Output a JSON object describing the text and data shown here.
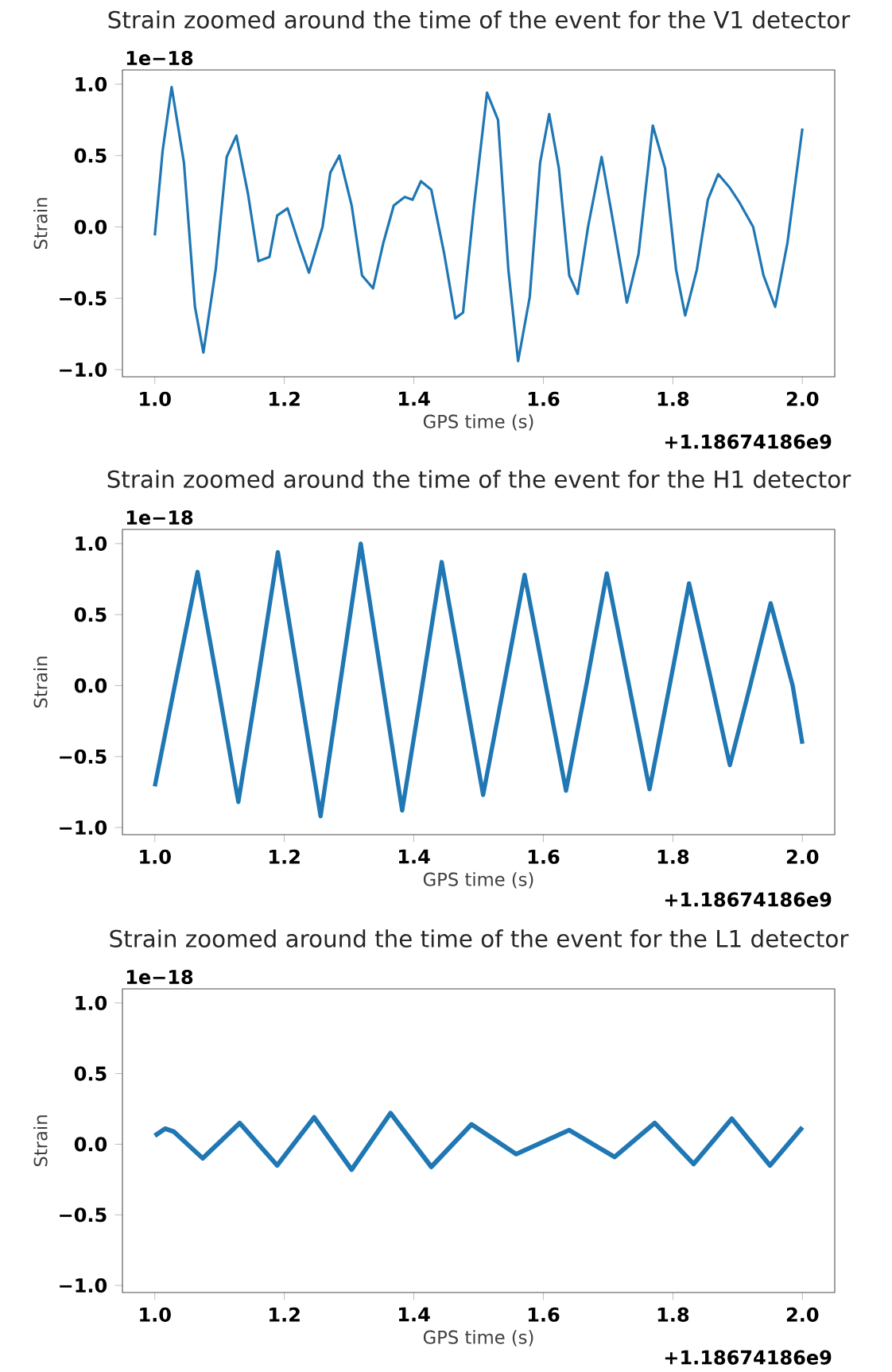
{
  "chart_data": [
    {
      "type": "line",
      "title": "Strain zoomed around the time of the event for the V1 detector",
      "xlabel": "GPS time (s)",
      "ylabel": "Strain",
      "annotations": [
        "1e−18",
        "+1.18674186e9"
      ],
      "x": [
        1.0,
        1.012,
        1.026,
        1.045,
        1.062,
        1.075,
        1.094,
        1.111,
        1.126,
        1.144,
        1.16,
        1.177,
        1.189,
        1.205,
        1.222,
        1.238,
        1.259,
        1.271,
        1.285,
        1.304,
        1.32,
        1.337,
        1.353,
        1.369,
        1.386,
        1.398,
        1.411,
        1.427,
        1.447,
        1.464,
        1.476,
        1.493,
        1.513,
        1.53,
        1.546,
        1.561,
        1.579,
        1.595,
        1.609,
        1.624,
        1.64,
        1.653,
        1.669,
        1.69,
        1.706,
        1.729,
        1.747,
        1.769,
        1.788,
        1.805,
        1.819,
        1.837,
        1.854,
        1.87,
        1.887,
        1.903,
        1.924,
        1.94,
        1.958,
        1.977,
        2.0
      ],
      "series": [
        {
          "color": "#1f77b4",
          "values": [
            -0.06,
            0.53,
            0.98,
            0.45,
            -0.56,
            -0.88,
            -0.3,
            0.49,
            0.64,
            0.23,
            -0.24,
            -0.21,
            0.08,
            0.13,
            -0.11,
            -0.32,
            0.0,
            0.38,
            0.5,
            0.15,
            -0.34,
            -0.43,
            -0.11,
            0.15,
            0.21,
            0.19,
            0.32,
            0.26,
            -0.19,
            -0.64,
            -0.6,
            0.15,
            0.94,
            0.75,
            -0.3,
            -0.94,
            -0.49,
            0.45,
            0.79,
            0.41,
            -0.34,
            -0.47,
            0.0,
            0.49,
            0.08,
            -0.53,
            -0.19,
            0.71,
            0.41,
            -0.3,
            -0.62,
            -0.3,
            0.19,
            0.37,
            0.28,
            0.17,
            0.0,
            -0.34,
            -0.56,
            -0.11,
            0.69
          ]
        }
      ],
      "xlim": [
        0.95,
        2.05
      ],
      "ylim": [
        -1.05,
        1.1
      ],
      "xticks": [
        {
          "value": 1.0,
          "label": "1.0"
        },
        {
          "value": 1.2,
          "label": "1.2"
        },
        {
          "value": 1.4,
          "label": "1.4"
        },
        {
          "value": 1.6,
          "label": "1.6"
        },
        {
          "value": 1.8,
          "label": "1.8"
        },
        {
          "value": 2.0,
          "label": "2.0"
        }
      ],
      "yticks": [
        {
          "value": -1.0,
          "label": "−1.0"
        },
        {
          "value": -0.5,
          "label": "−0.5"
        },
        {
          "value": 0.0,
          "label": "0.0"
        },
        {
          "value": 0.5,
          "label": "0.5"
        },
        {
          "value": 1.0,
          "label": "1.0"
        }
      ]
    },
    {
      "type": "line",
      "title": "Strain zoomed around the time of the event for the H1 detector",
      "xlabel": "GPS time (s)",
      "ylabel": "Strain",
      "annotations": [
        "1e−18",
        "+1.18674186e9"
      ],
      "x": [
        1.0,
        1.033,
        1.066,
        1.098,
        1.129,
        1.16,
        1.19,
        1.223,
        1.256,
        1.287,
        1.318,
        1.35,
        1.382,
        1.413,
        1.443,
        1.475,
        1.507,
        1.539,
        1.571,
        1.603,
        1.635,
        1.667,
        1.698,
        1.731,
        1.764,
        1.795,
        1.825,
        1.857,
        1.888,
        1.92,
        1.951,
        1.985,
        2.0
      ],
      "series": [
        {
          "color": "#1f77b4",
          "values": [
            -0.71,
            0.05,
            0.8,
            -0.01,
            -0.82,
            0.06,
            0.94,
            0.01,
            -0.92,
            0.04,
            1.0,
            0.06,
            -0.88,
            0.0,
            0.87,
            0.05,
            -0.77,
            0.0,
            0.78,
            0.02,
            -0.74,
            0.02,
            0.79,
            0.03,
            -0.73,
            0.0,
            0.72,
            0.08,
            -0.56,
            0.01,
            0.58,
            0.0,
            -0.41
          ]
        }
      ],
      "xlim": [
        0.95,
        2.05
      ],
      "ylim": [
        -1.05,
        1.1
      ],
      "xticks": [
        {
          "value": 1.0,
          "label": "1.0"
        },
        {
          "value": 1.2,
          "label": "1.2"
        },
        {
          "value": 1.4,
          "label": "1.4"
        },
        {
          "value": 1.6,
          "label": "1.6"
        },
        {
          "value": 1.8,
          "label": "1.8"
        },
        {
          "value": 2.0,
          "label": "2.0"
        }
      ],
      "yticks": [
        {
          "value": -1.0,
          "label": "−1.0"
        },
        {
          "value": -0.5,
          "label": "−0.5"
        },
        {
          "value": 0.0,
          "label": "0.0"
        },
        {
          "value": 0.5,
          "label": "0.5"
        },
        {
          "value": 1.0,
          "label": "1.0"
        }
      ]
    },
    {
      "type": "line",
      "title": "Strain zoomed around the time of the event for the L1 detector",
      "xlabel": "GPS time (s)",
      "ylabel": "Strain",
      "annotations": [
        "1e−18",
        "+1.18674186e9"
      ],
      "x": [
        1.0,
        1.016,
        1.029,
        1.074,
        1.131,
        1.189,
        1.246,
        1.304,
        1.364,
        1.427,
        1.489,
        1.558,
        1.64,
        1.71,
        1.772,
        1.832,
        1.891,
        1.95,
        2.0
      ],
      "series": [
        {
          "color": "#1f77b4",
          "values": [
            0.06,
            0.11,
            0.09,
            -0.1,
            0.15,
            -0.15,
            0.19,
            -0.18,
            0.22,
            -0.16,
            0.14,
            -0.07,
            0.1,
            -0.09,
            0.15,
            -0.14,
            0.18,
            -0.15,
            0.12
          ]
        }
      ],
      "xlim": [
        0.95,
        2.05
      ],
      "ylim": [
        -1.05,
        1.1
      ],
      "xticks": [
        {
          "value": 1.0,
          "label": "1.0"
        },
        {
          "value": 1.2,
          "label": "1.2"
        },
        {
          "value": 1.4,
          "label": "1.4"
        },
        {
          "value": 1.6,
          "label": "1.6"
        },
        {
          "value": 1.8,
          "label": "1.8"
        },
        {
          "value": 2.0,
          "label": "2.0"
        }
      ],
      "yticks": [
        {
          "value": -1.0,
          "label": "−1.0"
        },
        {
          "value": -0.5,
          "label": "−0.5"
        },
        {
          "value": 0.0,
          "label": "0.0"
        },
        {
          "value": 0.5,
          "label": "0.5"
        },
        {
          "value": 1.0,
          "label": "1.0"
        }
      ]
    }
  ]
}
